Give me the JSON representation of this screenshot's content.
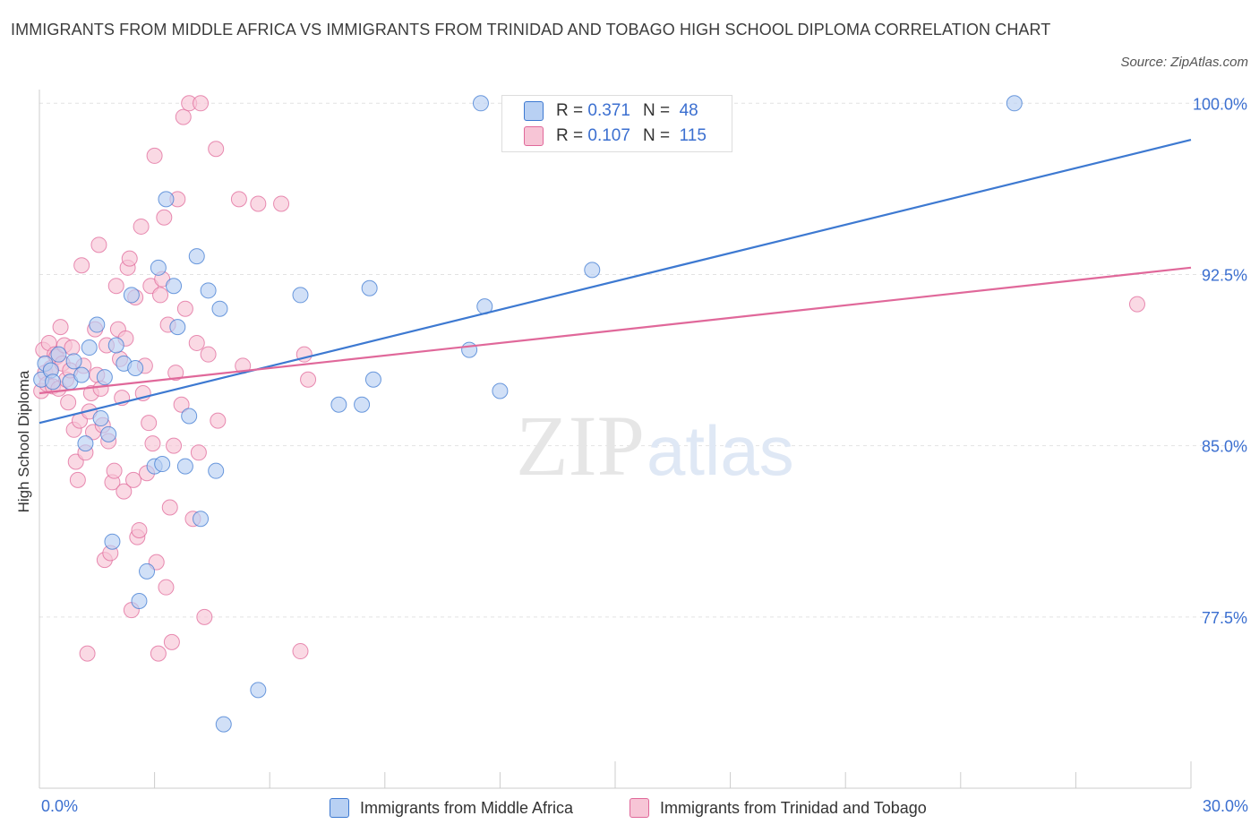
{
  "title": "IMMIGRANTS FROM MIDDLE AFRICA VS IMMIGRANTS FROM TRINIDAD AND TOBAGO HIGH SCHOOL DIPLOMA CORRELATION CHART",
  "source": "Source: ZipAtlas.com",
  "colors": {
    "blue": "#3d79d1",
    "blue_fill": "#b8d0f3",
    "pink": "#e0689a",
    "pink_fill": "#f7c5d6",
    "tick_label": "#3b6fd0",
    "grid": "#e2e2e2"
  },
  "legend": {
    "blue": {
      "r_label": "R =",
      "r_value": "0.371",
      "n_label": "N =",
      "n_value": "48"
    },
    "pink": {
      "r_label": "R =",
      "r_value": "0.107",
      "n_label": "N =",
      "n_value": "115"
    }
  },
  "series_names": {
    "blue": "Immigrants from Middle Africa",
    "pink": "Immigrants from Trinidad and Tobago"
  },
  "chart_data": {
    "type": "scatter",
    "title": "IMMIGRANTS FROM MIDDLE AFRICA VS IMMIGRANTS FROM TRINIDAD AND TOBAGO HIGH SCHOOL DIPLOMA CORRELATION CHART",
    "xlabel": "",
    "ylabel": "High School Diploma",
    "xlim": [
      0,
      30
    ],
    "ylim": [
      70.0,
      100.6
    ],
    "x_tick_labels": [
      "0.0%",
      "30.0%"
    ],
    "y_ticks": [
      77.5,
      85.0,
      92.5,
      100.0
    ],
    "y_tick_labels": [
      "77.5%",
      "85.0%",
      "92.5%",
      "100.0%"
    ],
    "grid": true,
    "series": [
      {
        "name": "Immigrants from Middle Africa",
        "color": "#3d79d1",
        "r": 0.371,
        "n": 48,
        "trend": [
          [
            0,
            86.0
          ],
          [
            30,
            98.4
          ]
        ],
        "points": [
          [
            0.05,
            87.9
          ],
          [
            0.15,
            88.6
          ],
          [
            0.3,
            88.3
          ],
          [
            0.35,
            87.8
          ],
          [
            0.5,
            89.0
          ],
          [
            0.8,
            87.8
          ],
          [
            0.9,
            88.7
          ],
          [
            1.1,
            88.1
          ],
          [
            1.2,
            85.1
          ],
          [
            1.3,
            89.3
          ],
          [
            1.5,
            90.3
          ],
          [
            1.6,
            86.2
          ],
          [
            1.7,
            88.0
          ],
          [
            1.8,
            85.5
          ],
          [
            1.9,
            80.8
          ],
          [
            2.0,
            89.4
          ],
          [
            2.2,
            88.6
          ],
          [
            2.4,
            91.6
          ],
          [
            2.5,
            88.4
          ],
          [
            2.6,
            78.2
          ],
          [
            2.8,
            79.5
          ],
          [
            3.0,
            84.1
          ],
          [
            3.1,
            92.8
          ],
          [
            3.2,
            84.2
          ],
          [
            3.3,
            95.8
          ],
          [
            3.5,
            92.0
          ],
          [
            3.6,
            90.2
          ],
          [
            3.8,
            84.1
          ],
          [
            3.9,
            86.3
          ],
          [
            4.1,
            93.3
          ],
          [
            4.2,
            81.8
          ],
          [
            4.4,
            91.8
          ],
          [
            4.6,
            83.9
          ],
          [
            4.7,
            91.0
          ],
          [
            4.8,
            72.8
          ],
          [
            5.7,
            74.3
          ],
          [
            6.8,
            91.6
          ],
          [
            7.8,
            86.8
          ],
          [
            8.4,
            86.8
          ],
          [
            8.6,
            91.9
          ],
          [
            8.7,
            87.9
          ],
          [
            11.2,
            89.2
          ],
          [
            11.5,
            100.0
          ],
          [
            11.6,
            91.1
          ],
          [
            12.0,
            87.4
          ],
          [
            14.4,
            92.7
          ],
          [
            25.4,
            100.0
          ]
        ]
      },
      {
        "name": "Immigrants from Trinidad and Tobago",
        "color": "#e0689a",
        "r": 0.107,
        "n": 115,
        "trend": [
          [
            0,
            87.3
          ],
          [
            30,
            92.8
          ]
        ],
        "points": [
          [
            0.05,
            87.4
          ],
          [
            0.1,
            89.2
          ],
          [
            0.15,
            88.2
          ],
          [
            0.2,
            87.7
          ],
          [
            0.25,
            89.5
          ],
          [
            0.3,
            88.4
          ],
          [
            0.35,
            87.6
          ],
          [
            0.4,
            89.0
          ],
          [
            0.45,
            88.9
          ],
          [
            0.5,
            87.5
          ],
          [
            0.55,
            90.2
          ],
          [
            0.6,
            88.6
          ],
          [
            0.65,
            89.4
          ],
          [
            0.7,
            87.9
          ],
          [
            0.75,
            86.9
          ],
          [
            0.8,
            88.3
          ],
          [
            0.85,
            89.3
          ],
          [
            0.9,
            85.7
          ],
          [
            0.95,
            84.3
          ],
          [
            1.0,
            83.5
          ],
          [
            1.05,
            86.1
          ],
          [
            1.1,
            92.9
          ],
          [
            1.15,
            88.5
          ],
          [
            1.2,
            84.7
          ],
          [
            1.25,
            75.9
          ],
          [
            1.3,
            86.5
          ],
          [
            1.35,
            87.3
          ],
          [
            1.4,
            85.6
          ],
          [
            1.45,
            90.1
          ],
          [
            1.5,
            88.1
          ],
          [
            1.55,
            93.8
          ],
          [
            1.6,
            87.5
          ],
          [
            1.65,
            85.9
          ],
          [
            1.7,
            80.0
          ],
          [
            1.75,
            89.4
          ],
          [
            1.8,
            85.2
          ],
          [
            1.85,
            80.3
          ],
          [
            1.9,
            83.4
          ],
          [
            1.95,
            83.9
          ],
          [
            2.0,
            92.0
          ],
          [
            2.05,
            90.1
          ],
          [
            2.1,
            88.8
          ],
          [
            2.15,
            87.1
          ],
          [
            2.2,
            83.0
          ],
          [
            2.25,
            89.7
          ],
          [
            2.3,
            92.8
          ],
          [
            2.35,
            93.2
          ],
          [
            2.4,
            77.8
          ],
          [
            2.45,
            83.5
          ],
          [
            2.5,
            91.5
          ],
          [
            2.55,
            81.0
          ],
          [
            2.6,
            81.3
          ],
          [
            2.65,
            94.6
          ],
          [
            2.7,
            87.3
          ],
          [
            2.75,
            88.5
          ],
          [
            2.8,
            83.8
          ],
          [
            2.85,
            86.0
          ],
          [
            2.9,
            92.0
          ],
          [
            2.95,
            85.1
          ],
          [
            3.0,
            97.7
          ],
          [
            3.05,
            79.9
          ],
          [
            3.1,
            75.9
          ],
          [
            3.15,
            91.6
          ],
          [
            3.2,
            92.3
          ],
          [
            3.25,
            95.0
          ],
          [
            3.3,
            78.8
          ],
          [
            3.35,
            90.3
          ],
          [
            3.4,
            82.3
          ],
          [
            3.45,
            76.4
          ],
          [
            3.5,
            85.0
          ],
          [
            3.55,
            88.2
          ],
          [
            3.6,
            95.8
          ],
          [
            3.7,
            86.8
          ],
          [
            3.75,
            99.4
          ],
          [
            3.8,
            91.0
          ],
          [
            3.9,
            100.0
          ],
          [
            4.0,
            81.8
          ],
          [
            4.1,
            89.5
          ],
          [
            4.15,
            84.7
          ],
          [
            4.2,
            100.0
          ],
          [
            4.3,
            77.5
          ],
          [
            4.4,
            89.0
          ],
          [
            4.6,
            98.0
          ],
          [
            4.65,
            86.1
          ],
          [
            5.2,
            95.8
          ],
          [
            5.3,
            88.5
          ],
          [
            5.7,
            95.6
          ],
          [
            6.3,
            95.6
          ],
          [
            6.8,
            76.0
          ],
          [
            6.9,
            89.0
          ],
          [
            7.0,
            87.9
          ],
          [
            28.6,
            91.2
          ]
        ]
      }
    ]
  }
}
